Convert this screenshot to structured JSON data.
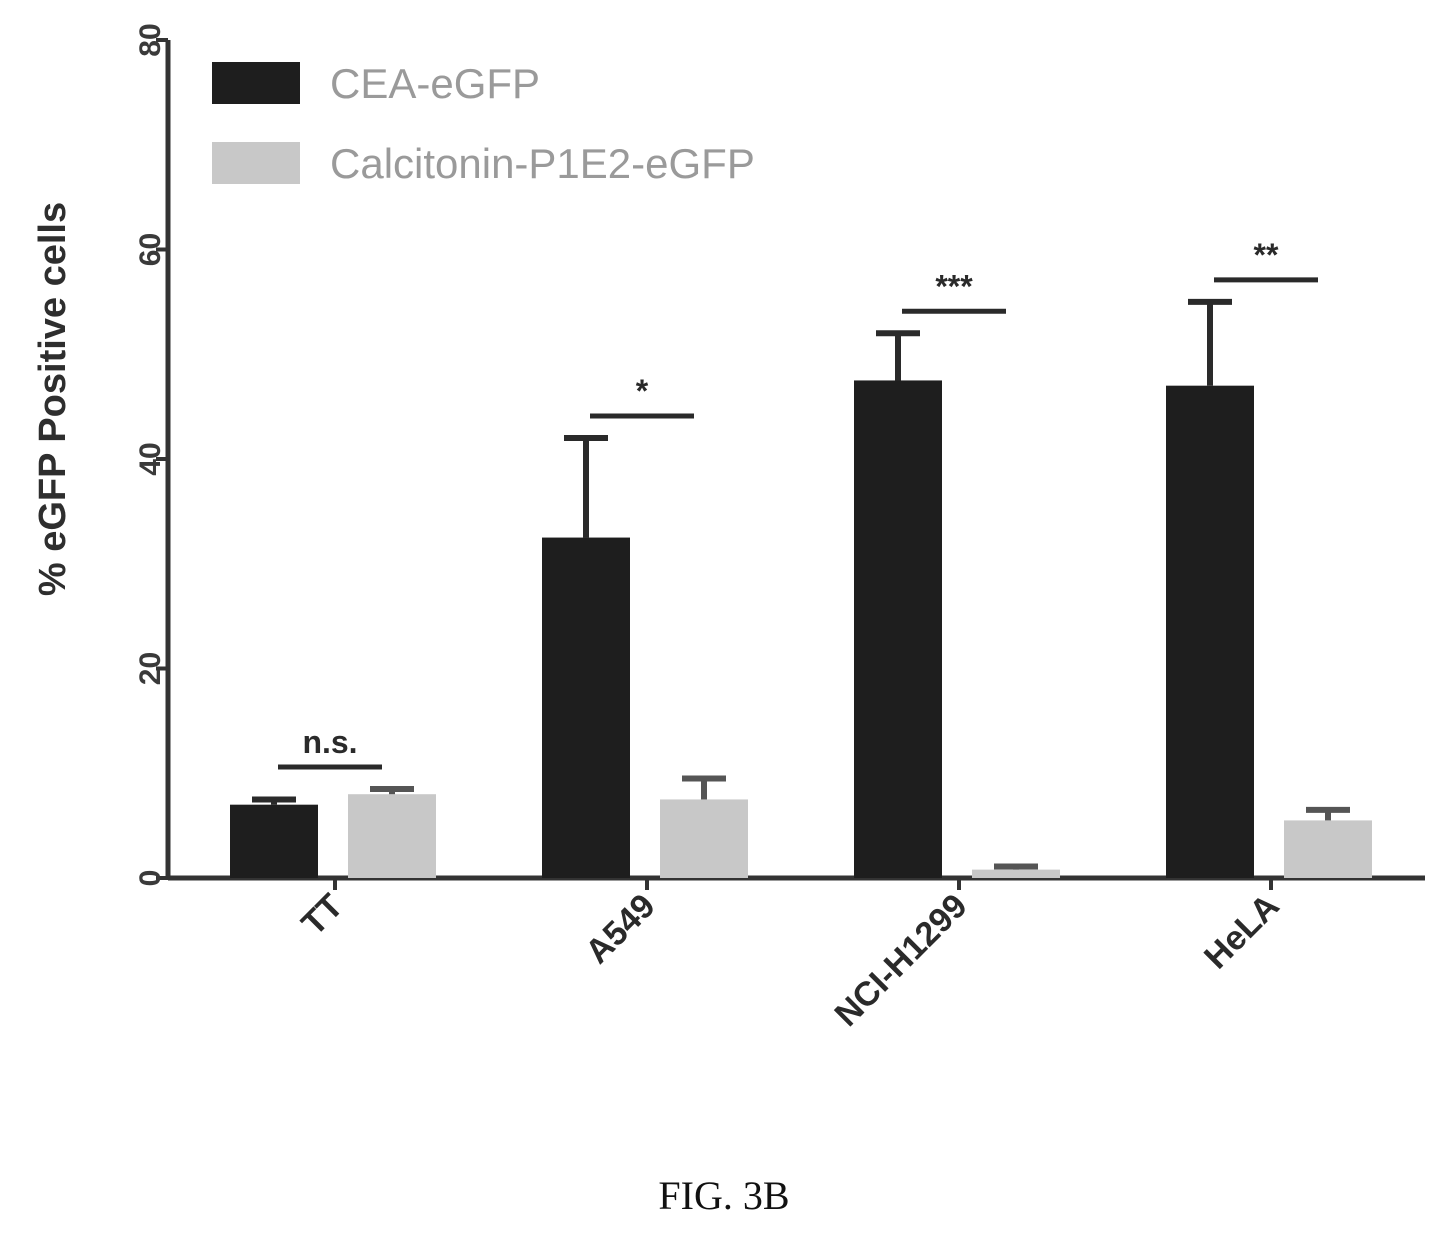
{
  "chart_data": {
    "type": "bar",
    "categories": [
      "TT",
      "A549",
      "NCI-H1299",
      "HeLA"
    ],
    "series": [
      {
        "name": "CEA-eGFP",
        "values": [
          7,
          32.5,
          47.5,
          47
        ],
        "errors": [
          0.5,
          9.5,
          4.5,
          8
        ]
      },
      {
        "name": "Calcitonin-P1E2-eGFP",
        "values": [
          8,
          7.5,
          0.8,
          5.5
        ],
        "errors": [
          0.5,
          2,
          0.3,
          1
        ]
      }
    ],
    "significance": [
      "n.s.",
      "*",
      "***",
      "**"
    ],
    "ylabel": "% eGFP Positive cells",
    "yticks": [
      0,
      20,
      40,
      60,
      80
    ],
    "ylim": [
      0,
      80
    ],
    "legend_position": "top-left",
    "colors": {
      "series1": "#1e1e1e",
      "series2": "#c8c8c8",
      "axis": "#333333"
    }
  },
  "caption": "FIG. 3B"
}
